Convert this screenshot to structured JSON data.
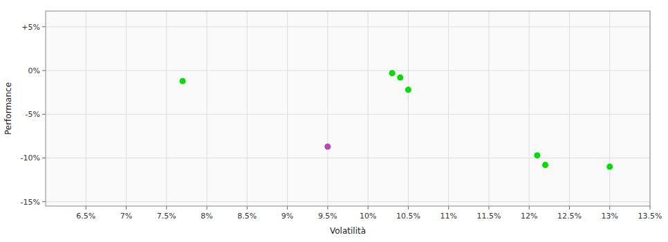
{
  "chart_data": {
    "type": "scatter",
    "xlabel": "Volatilità",
    "ylabel": "Performance",
    "x": [
      0.077,
      0.103,
      0.104,
      0.105,
      0.095,
      0.121,
      0.122,
      0.13
    ],
    "values": [
      -0.012,
      -0.003,
      -0.008,
      -0.022,
      -0.087,
      -0.097,
      -0.108,
      -0.11
    ],
    "colors": [
      "#00dd00",
      "#00dd00",
      "#00dd00",
      "#00dd00",
      "#bb44bb",
      "#00dd00",
      "#00dd00",
      "#00dd00"
    ],
    "xlim": [
      0.06,
      0.135
    ],
    "ylim": [
      -0.155,
      0.068
    ],
    "xticks": [
      {
        "value": 0.065,
        "label": "6.5%"
      },
      {
        "value": 0.07,
        "label": "7%"
      },
      {
        "value": 0.075,
        "label": "7.5%"
      },
      {
        "value": 0.08,
        "label": "8%"
      },
      {
        "value": 0.085,
        "label": "8.5%"
      },
      {
        "value": 0.09,
        "label": "9%"
      },
      {
        "value": 0.095,
        "label": "9.5%"
      },
      {
        "value": 0.1,
        "label": "10%"
      },
      {
        "value": 0.105,
        "label": "10.5%"
      },
      {
        "value": 0.11,
        "label": "11%"
      },
      {
        "value": 0.115,
        "label": "11.5%"
      },
      {
        "value": 0.12,
        "label": "12%"
      },
      {
        "value": 0.125,
        "label": "12.5%"
      },
      {
        "value": 0.13,
        "label": "13%"
      },
      {
        "value": 0.135,
        "label": "13.5%"
      }
    ],
    "yticks": [
      {
        "value": 0.05,
        "label": "+5%"
      },
      {
        "value": 0.0,
        "label": "0%"
      },
      {
        "value": -0.05,
        "label": "-5%"
      },
      {
        "value": -0.1,
        "label": "-10%"
      },
      {
        "value": -0.15,
        "label": "-15%"
      }
    ],
    "grid": true
  }
}
